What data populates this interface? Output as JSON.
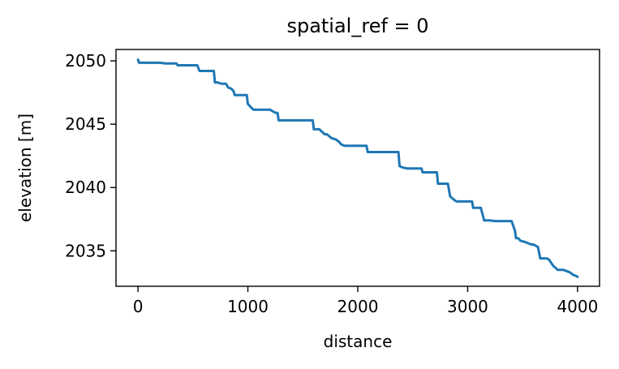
{
  "chart_data": {
    "type": "line",
    "title": "spatial_ref = 0",
    "xlabel": "distance",
    "ylabel": "elevation [m]",
    "xlim": [
      -200,
      4200
    ],
    "ylim": [
      2032.2,
      2050.9
    ],
    "xticks": [
      0,
      1000,
      2000,
      3000,
      4000
    ],
    "xtick_labels": [
      "0",
      "1000",
      "2000",
      "3000",
      "4000"
    ],
    "yticks": [
      2035,
      2040,
      2045,
      2050
    ],
    "ytick_labels": [
      "2035",
      "2040",
      "2045",
      "2050"
    ],
    "grid": false,
    "line_color": "#1f77b4",
    "series": [
      {
        "x": [
          0,
          10,
          20,
          50,
          100,
          150,
          200,
          250,
          300,
          350,
          360,
          400,
          450,
          500,
          540,
          560,
          600,
          650,
          690,
          700,
          720,
          760,
          800,
          820,
          850,
          870,
          880,
          900,
          920,
          950,
          990,
          1000,
          1020,
          1050,
          1100,
          1150,
          1200,
          1250,
          1270,
          1280,
          1300,
          1350,
          1400,
          1450,
          1500,
          1550,
          1590,
          1600,
          1620,
          1650,
          1700,
          1720,
          1760,
          1800,
          1830,
          1850,
          1880,
          1900,
          1920,
          1950,
          2000,
          2050,
          2080,
          2090,
          2120,
          2150,
          2200,
          2250,
          2300,
          2350,
          2370,
          2380,
          2400,
          2450,
          2500,
          2550,
          2580,
          2590,
          2620,
          2650,
          2700,
          2720,
          2730,
          2760,
          2800,
          2820,
          2840,
          2880,
          2900,
          2920,
          2950,
          3000,
          3040,
          3050,
          3080,
          3100,
          3120,
          3150,
          3200,
          3250,
          3260,
          3280,
          3300,
          3350,
          3400,
          3430,
          3440,
          3460,
          3480,
          3520,
          3550,
          3580,
          3600,
          3640,
          3660,
          3680,
          3700,
          3720,
          3740,
          3780,
          3820,
          3850,
          3870,
          3900,
          3930,
          3960,
          3990,
          4000
        ],
        "y": [
          2050.1,
          2049.85,
          2049.85,
          2049.85,
          2049.85,
          2049.85,
          2049.85,
          2049.8,
          2049.8,
          2049.8,
          2049.65,
          2049.65,
          2049.65,
          2049.65,
          2049.65,
          2049.2,
          2049.2,
          2049.2,
          2049.2,
          2048.3,
          2048.3,
          2048.2,
          2048.2,
          2047.9,
          2047.8,
          2047.6,
          2047.3,
          2047.3,
          2047.3,
          2047.3,
          2047.3,
          2046.6,
          2046.4,
          2046.15,
          2046.15,
          2046.15,
          2046.15,
          2045.9,
          2045.9,
          2045.3,
          2045.3,
          2045.3,
          2045.3,
          2045.3,
          2045.3,
          2045.3,
          2045.3,
          2044.6,
          2044.6,
          2044.6,
          2044.2,
          2044.2,
          2043.9,
          2043.8,
          2043.6,
          2043.4,
          2043.3,
          2043.3,
          2043.3,
          2043.3,
          2043.3,
          2043.3,
          2043.3,
          2042.8,
          2042.8,
          2042.8,
          2042.8,
          2042.8,
          2042.8,
          2042.8,
          2042.8,
          2041.7,
          2041.6,
          2041.5,
          2041.5,
          2041.5,
          2041.5,
          2041.2,
          2041.2,
          2041.2,
          2041.2,
          2041.2,
          2040.3,
          2040.3,
          2040.3,
          2040.3,
          2039.3,
          2039.0,
          2038.9,
          2038.9,
          2038.9,
          2038.9,
          2038.9,
          2038.4,
          2038.4,
          2038.4,
          2038.4,
          2037.4,
          2037.4,
          2037.35,
          2037.35,
          2037.35,
          2037.35,
          2037.35,
          2037.35,
          2036.6,
          2036.0,
          2036.0,
          2035.8,
          2035.7,
          2035.6,
          2035.5,
          2035.5,
          2035.3,
          2034.4,
          2034.4,
          2034.4,
          2034.4,
          2034.3,
          2033.8,
          2033.5,
          2033.5,
          2033.5,
          2033.4,
          2033.3,
          2033.1,
          2033.0,
          2032.95
        ]
      }
    ]
  }
}
